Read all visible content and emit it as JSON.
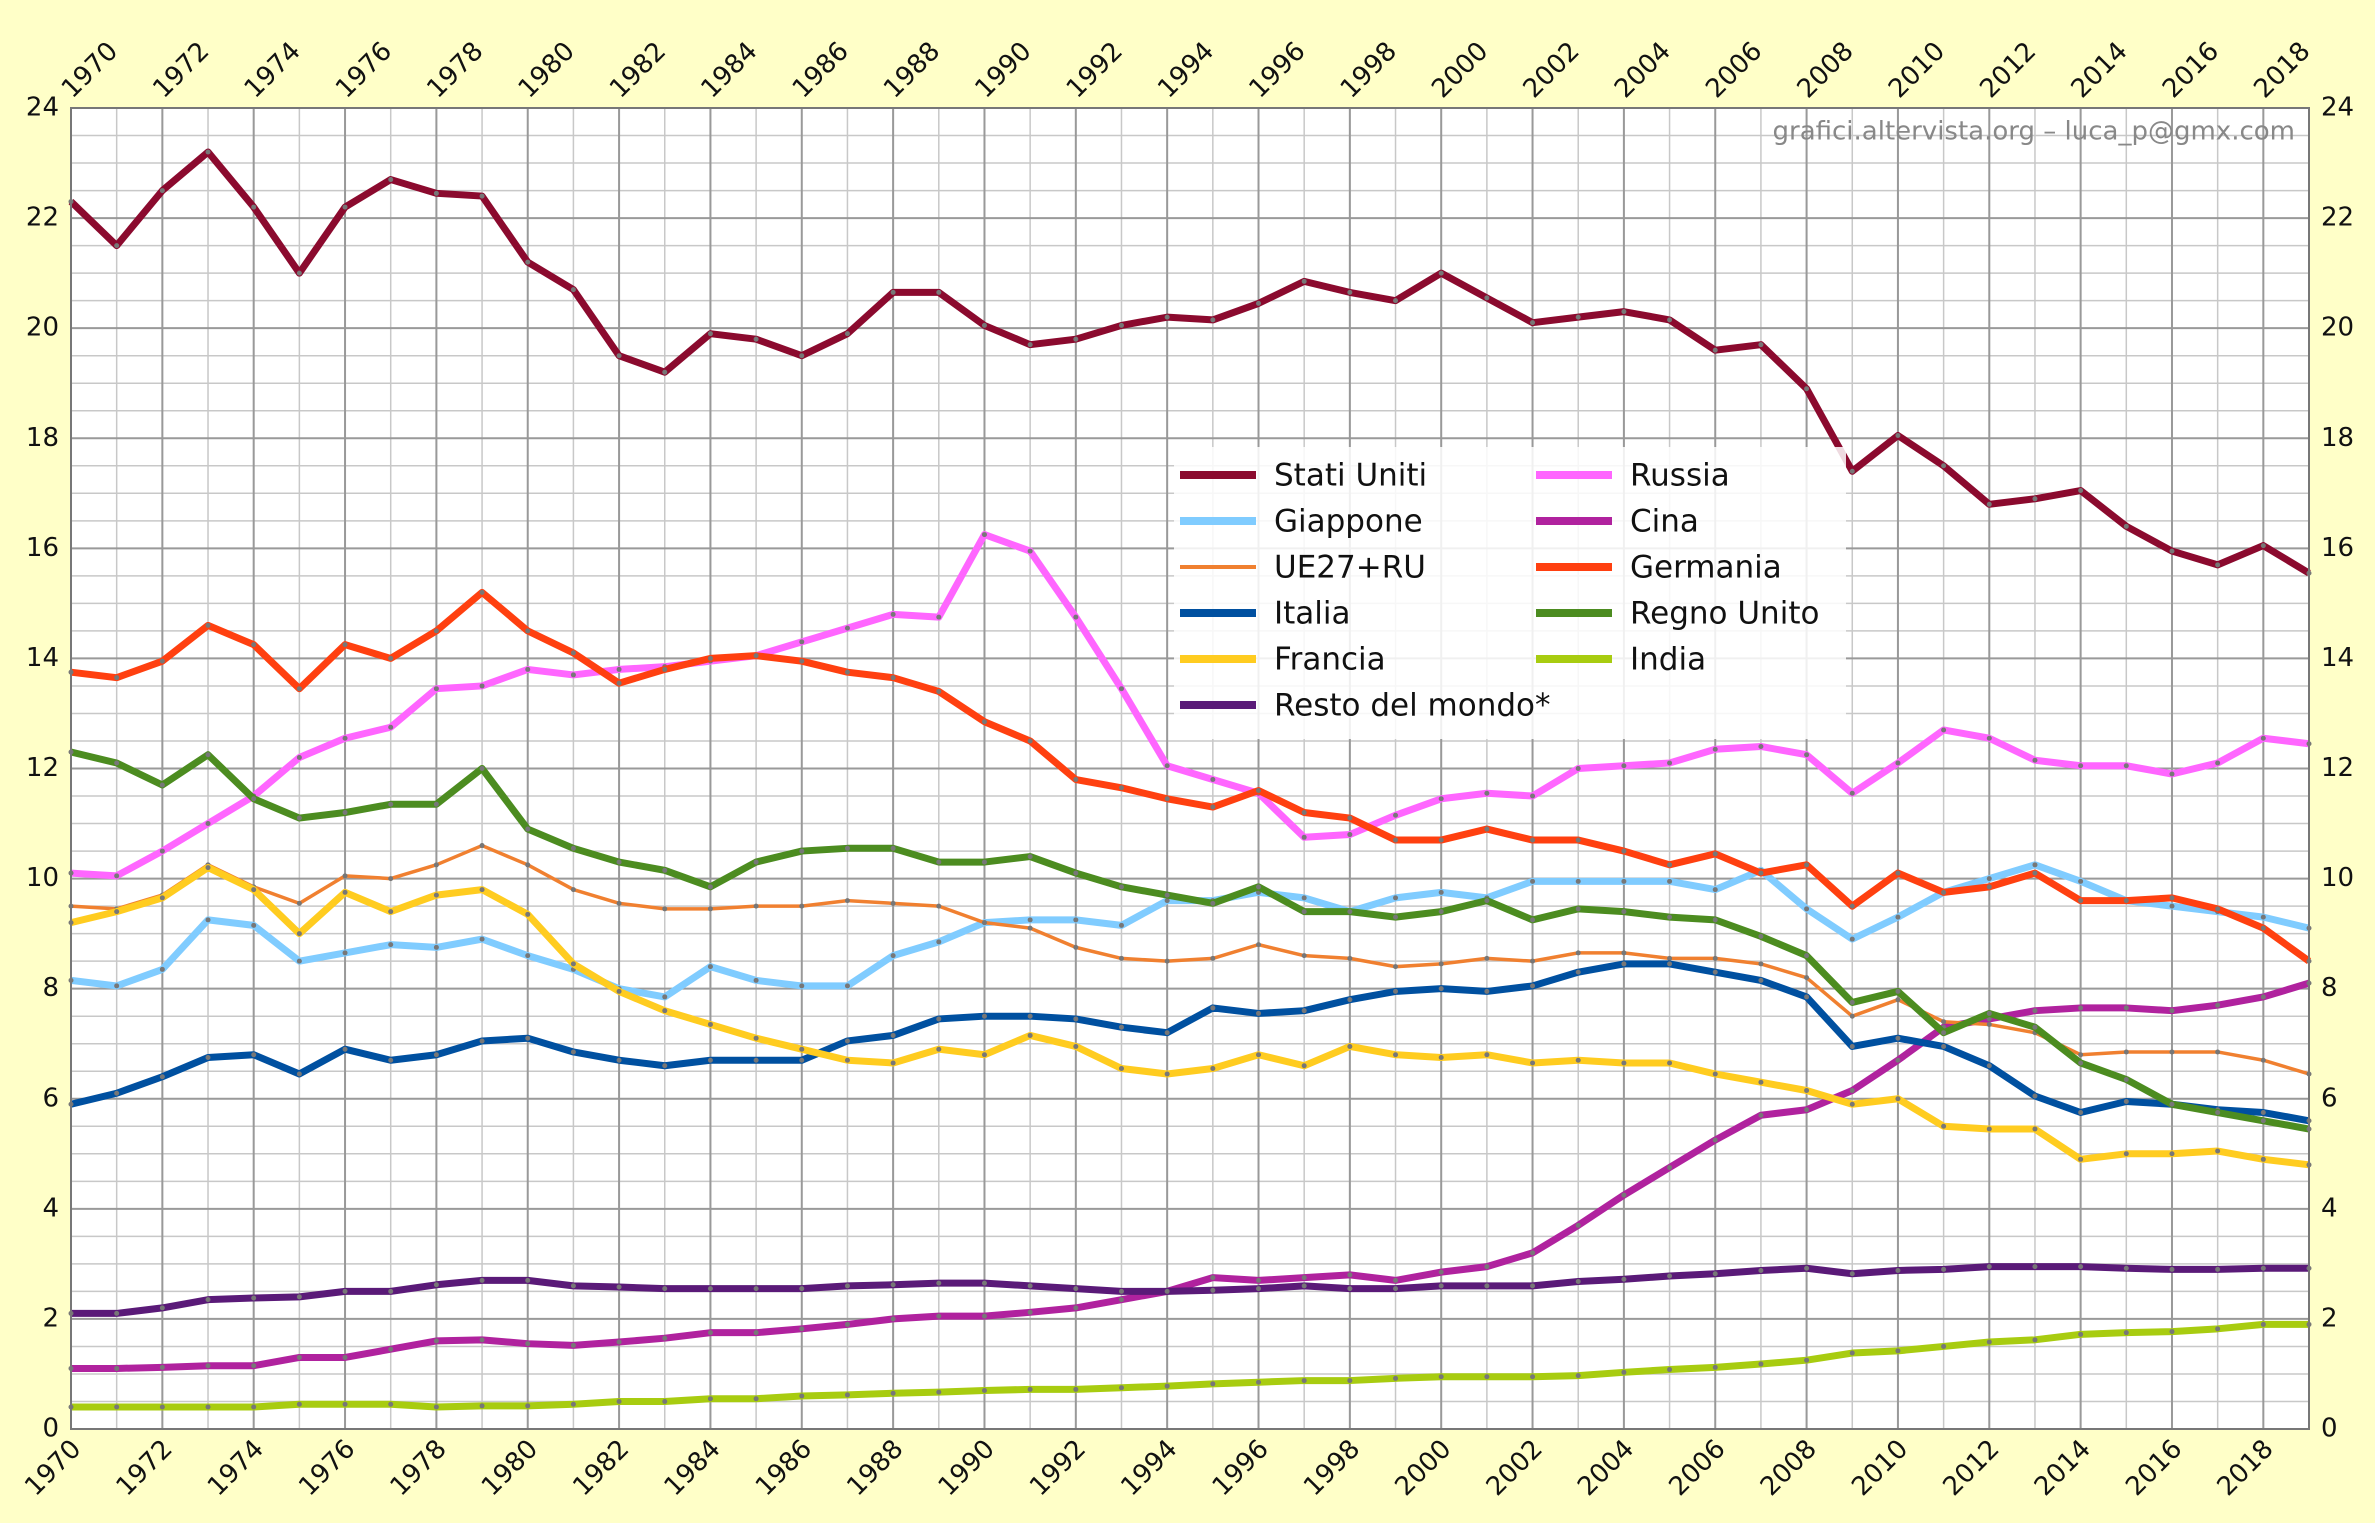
{
  "chart_data": {
    "type": "line",
    "watermark": "grafici.altervista.org – luca_p@gmx.com",
    "x": [
      1970,
      1971,
      1972,
      1973,
      1974,
      1975,
      1976,
      1977,
      1978,
      1979,
      1980,
      1981,
      1982,
      1983,
      1984,
      1985,
      1986,
      1987,
      1988,
      1989,
      1990,
      1991,
      1992,
      1993,
      1994,
      1995,
      1996,
      1997,
      1998,
      1999,
      2000,
      2001,
      2002,
      2003,
      2004,
      2005,
      2006,
      2007,
      2008,
      2009,
      2010,
      2011,
      2012,
      2013,
      2014,
      2015,
      2016,
      2017,
      2018,
      2019
    ],
    "xlim": [
      1970,
      2019
    ],
    "xticks": [
      1970,
      1972,
      1974,
      1976,
      1978,
      1980,
      1982,
      1984,
      1986,
      1988,
      1990,
      1992,
      1994,
      1996,
      1998,
      2000,
      2002,
      2004,
      2006,
      2008,
      2010,
      2012,
      2014,
      2016,
      2018
    ],
    "ylim": [
      0,
      24
    ],
    "yticks": [
      0,
      2,
      4,
      6,
      8,
      10,
      12,
      14,
      16,
      18,
      20,
      22,
      24
    ],
    "grid": true,
    "legend": "center",
    "series": [
      {
        "name": "Stati Uniti",
        "color": "#8b0a2e",
        "values": [
          22.3,
          21.5,
          22.5,
          23.2,
          22.2,
          21.0,
          22.2,
          22.7,
          22.45,
          22.4,
          21.2,
          20.7,
          19.5,
          19.2,
          19.9,
          19.8,
          19.5,
          19.9,
          20.65,
          20.65,
          20.05,
          19.7,
          19.8,
          20.05,
          20.2,
          20.15,
          20.45,
          20.85,
          20.65,
          20.5,
          21.0,
          20.55,
          20.1,
          20.2,
          20.3,
          20.15,
          19.6,
          19.7,
          18.9,
          17.4,
          18.05,
          17.5,
          16.8,
          16.9,
          17.05,
          16.4,
          15.95,
          15.7,
          16.05,
          15.55
        ]
      },
      {
        "name": "Russia",
        "color": "#ff66ff",
        "values": [
          10.1,
          10.05,
          10.5,
          11.0,
          11.5,
          12.2,
          12.55,
          12.75,
          13.45,
          13.5,
          13.8,
          13.7,
          13.8,
          13.85,
          13.95,
          14.05,
          14.3,
          14.55,
          14.8,
          14.75,
          16.25,
          15.95,
          14.75,
          13.45,
          12.05,
          11.8,
          11.55,
          10.75,
          10.8,
          11.15,
          11.45,
          11.55,
          11.5,
          12.0,
          12.05,
          12.1,
          12.35,
          12.4,
          12.25,
          11.55,
          12.1,
          12.7,
          12.55,
          12.15,
          12.05,
          12.05,
          11.9,
          12.1,
          12.55,
          12.45
        ]
      },
      {
        "name": "Giappone",
        "color": "#80ccff",
        "values": [
          8.15,
          8.05,
          8.35,
          9.25,
          9.15,
          8.5,
          8.65,
          8.8,
          8.75,
          8.9,
          8.6,
          8.35,
          8.0,
          7.85,
          8.4,
          8.15,
          8.05,
          8.05,
          8.6,
          8.85,
          9.2,
          9.25,
          9.25,
          9.15,
          9.6,
          9.6,
          9.75,
          9.65,
          9.4,
          9.65,
          9.75,
          9.65,
          9.95,
          9.95,
          9.95,
          9.95,
          9.8,
          10.15,
          9.45,
          8.9,
          9.3,
          9.75,
          10.0,
          10.25,
          9.95,
          9.6,
          9.5,
          9.4,
          9.3,
          9.1
        ]
      },
      {
        "name": "Cina",
        "color": "#b0229e",
        "values": [
          1.1,
          1.1,
          1.12,
          1.15,
          1.15,
          1.3,
          1.3,
          1.45,
          1.6,
          1.62,
          1.55,
          1.52,
          1.58,
          1.65,
          1.75,
          1.75,
          1.82,
          1.9,
          2.0,
          2.05,
          2.05,
          2.12,
          2.2,
          2.35,
          2.5,
          2.75,
          2.7,
          2.75,
          2.8,
          2.7,
          2.85,
          2.95,
          3.2,
          3.7,
          4.25,
          4.75,
          5.25,
          5.7,
          5.8,
          6.15,
          6.7,
          7.3,
          7.45,
          7.6,
          7.65,
          7.65,
          7.6,
          7.7,
          7.85,
          8.1
        ]
      },
      {
        "name": "UE27+RU",
        "color": "#f08030",
        "values": [
          9.5,
          9.45,
          9.7,
          10.25,
          9.85,
          9.55,
          10.05,
          10.0,
          10.25,
          10.6,
          10.25,
          9.8,
          9.55,
          9.45,
          9.45,
          9.5,
          9.5,
          9.6,
          9.55,
          9.5,
          9.2,
          9.1,
          8.75,
          8.55,
          8.5,
          8.55,
          8.8,
          8.6,
          8.55,
          8.4,
          8.45,
          8.55,
          8.5,
          8.65,
          8.65,
          8.55,
          8.55,
          8.45,
          8.2,
          7.5,
          7.8,
          7.4,
          7.35,
          7.2,
          6.8,
          6.85,
          6.85,
          6.85,
          6.7,
          6.45
        ]
      },
      {
        "name": "Germania",
        "color": "#ff4010",
        "values": [
          13.75,
          13.65,
          13.95,
          14.6,
          14.25,
          13.45,
          14.25,
          14.0,
          14.5,
          15.2,
          14.5,
          14.1,
          13.55,
          13.8,
          14.0,
          14.05,
          13.95,
          13.75,
          13.65,
          13.4,
          12.85,
          12.5,
          11.8,
          11.65,
          11.45,
          11.3,
          11.6,
          11.2,
          11.1,
          10.7,
          10.7,
          10.9,
          10.7,
          10.7,
          10.5,
          10.25,
          10.45,
          10.1,
          10.25,
          9.5,
          10.1,
          9.75,
          9.85,
          10.1,
          9.6,
          9.6,
          9.65,
          9.45,
          9.1,
          8.5
        ]
      },
      {
        "name": "Italia",
        "color": "#0050a0",
        "values": [
          5.9,
          6.1,
          6.4,
          6.75,
          6.8,
          6.45,
          6.9,
          6.7,
          6.8,
          7.05,
          7.1,
          6.85,
          6.7,
          6.6,
          6.7,
          6.7,
          6.7,
          7.05,
          7.15,
          7.45,
          7.5,
          7.5,
          7.45,
          7.3,
          7.2,
          7.65,
          7.55,
          7.6,
          7.8,
          7.95,
          8.0,
          7.95,
          8.05,
          8.3,
          8.45,
          8.45,
          8.3,
          8.15,
          7.85,
          6.95,
          7.1,
          6.95,
          6.6,
          6.05,
          5.75,
          5.95,
          5.9,
          5.8,
          5.75,
          5.6
        ]
      },
      {
        "name": "Regno Unito",
        "color": "#4c8c20",
        "values": [
          12.3,
          12.1,
          11.7,
          12.25,
          11.45,
          11.1,
          11.2,
          11.35,
          11.35,
          12.0,
          10.9,
          10.55,
          10.3,
          10.15,
          9.85,
          10.3,
          10.5,
          10.55,
          10.55,
          10.3,
          10.3,
          10.4,
          10.1,
          9.85,
          9.7,
          9.55,
          9.85,
          9.4,
          9.4,
          9.3,
          9.4,
          9.6,
          9.25,
          9.45,
          9.4,
          9.3,
          9.25,
          8.95,
          8.6,
          7.75,
          7.95,
          7.2,
          7.55,
          7.3,
          6.65,
          6.35,
          5.9,
          5.75,
          5.6,
          5.45
        ]
      },
      {
        "name": "Francia",
        "color": "#ffcc20",
        "values": [
          9.2,
          9.4,
          9.65,
          10.2,
          9.8,
          9.0,
          9.75,
          9.4,
          9.7,
          9.8,
          9.35,
          8.45,
          7.95,
          7.6,
          7.35,
          7.1,
          6.9,
          6.7,
          6.65,
          6.9,
          6.8,
          7.15,
          6.95,
          6.55,
          6.45,
          6.55,
          6.8,
          6.6,
          6.95,
          6.8,
          6.75,
          6.8,
          6.65,
          6.7,
          6.65,
          6.65,
          6.45,
          6.3,
          6.15,
          5.9,
          6.0,
          5.5,
          5.45,
          5.45,
          4.9,
          5.0,
          5.0,
          5.05,
          4.9,
          4.8
        ]
      },
      {
        "name": "India",
        "color": "#a8cc10",
        "values": [
          0.4,
          0.4,
          0.4,
          0.4,
          0.4,
          0.45,
          0.45,
          0.45,
          0.4,
          0.42,
          0.42,
          0.45,
          0.5,
          0.5,
          0.55,
          0.55,
          0.6,
          0.62,
          0.65,
          0.67,
          0.7,
          0.72,
          0.72,
          0.75,
          0.78,
          0.82,
          0.85,
          0.88,
          0.88,
          0.92,
          0.95,
          0.95,
          0.95,
          0.97,
          1.03,
          1.08,
          1.12,
          1.18,
          1.25,
          1.38,
          1.42,
          1.5,
          1.58,
          1.62,
          1.72,
          1.75,
          1.77,
          1.82,
          1.9,
          1.9
        ]
      },
      {
        "name": "Resto del mondo*",
        "color": "#5a1a78",
        "values": [
          2.1,
          2.1,
          2.2,
          2.35,
          2.38,
          2.4,
          2.5,
          2.5,
          2.62,
          2.7,
          2.7,
          2.6,
          2.58,
          2.55,
          2.55,
          2.55,
          2.55,
          2.6,
          2.62,
          2.65,
          2.65,
          2.6,
          2.55,
          2.5,
          2.5,
          2.52,
          2.55,
          2.6,
          2.55,
          2.55,
          2.6,
          2.6,
          2.6,
          2.68,
          2.72,
          2.78,
          2.82,
          2.88,
          2.92,
          2.82,
          2.88,
          2.9,
          2.95,
          2.95,
          2.95,
          2.92,
          2.9,
          2.9,
          2.92,
          2.92
        ]
      }
    ]
  }
}
